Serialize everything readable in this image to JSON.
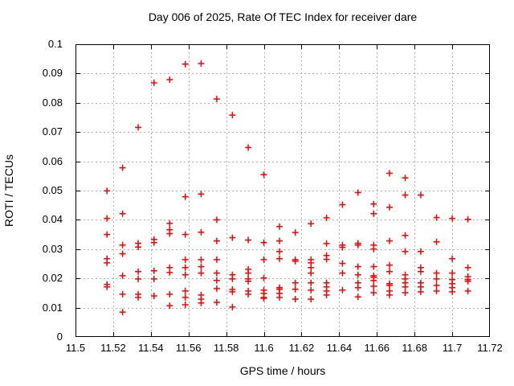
{
  "chart_data": {
    "type": "scatter",
    "title": "Day 006 of 2025, Rate Of TEC Index for receiver dare",
    "xlabel": "GPS time / hours",
    "ylabel": "ROTI / TECUs",
    "xlim": [
      11.5,
      11.72
    ],
    "ylim": [
      0,
      0.1
    ],
    "xtick_values": [
      11.5,
      11.52,
      11.54,
      11.56,
      11.58,
      11.6,
      11.62,
      11.64,
      11.66,
      11.68,
      11.7,
      11.72
    ],
    "xtick_labels": [
      "11.5",
      "11.52",
      "11.54",
      "11.56",
      "11.58",
      "11.6",
      "11.62",
      "11.64",
      "11.66",
      "11.68",
      "11.7",
      "11.72"
    ],
    "ytick_values": [
      0,
      0.01,
      0.02,
      0.03,
      0.04,
      0.05,
      0.06,
      0.07,
      0.08,
      0.09,
      0.1
    ],
    "ytick_labels": [
      "0",
      "0.01",
      "0.02",
      "0.03",
      "0.04",
      "0.05",
      "0.06",
      "0.07",
      "0.08",
      "0.09",
      "0.1"
    ],
    "grid": true,
    "legend": "none",
    "marker": "plus",
    "marker_color": "#ff0000",
    "grid_color": "#b0b0b0",
    "axis_color": "#000000",
    "series": [
      {
        "name": "ROTI",
        "clusters": [
          {
            "x": 11.5167,
            "y": [
              0.0499,
              0.0405,
              0.035,
              0.0267,
              0.0253,
              0.0179,
              0.0171
            ]
          },
          {
            "x": 11.525,
            "y": [
              0.0578,
              0.0421,
              0.0314,
              0.0284,
              0.0209,
              0.0146,
              0.0085
            ]
          },
          {
            "x": 11.5333,
            "y": [
              0.0716,
              0.032,
              0.0307,
              0.0223,
              0.0198,
              0.0146,
              0.0135
            ]
          },
          {
            "x": 11.5417,
            "y": [
              0.0868,
              0.0333,
              0.0322,
              0.0226,
              0.0198,
              0.014
            ]
          },
          {
            "x": 11.55,
            "y": [
              0.0879,
              0.0388,
              0.0366,
              0.0353,
              0.0237,
              0.022,
              0.0146,
              0.0107
            ]
          },
          {
            "x": 11.5583,
            "y": [
              0.0932,
              0.0479,
              0.035,
              0.0264,
              0.0237,
              0.0212,
              0.0157,
              0.0135,
              0.011
            ]
          },
          {
            "x": 11.5667,
            "y": [
              0.0934,
              0.0488,
              0.0358,
              0.0264,
              0.024,
              0.0218,
              0.0143,
              0.0129,
              0.0116
            ]
          },
          {
            "x": 11.575,
            "y": [
              0.0813,
              0.04,
              0.0328,
              0.0264,
              0.0218,
              0.0193,
              0.0165,
              0.0118
            ]
          },
          {
            "x": 11.5833,
            "y": [
              0.0758,
              0.0339,
              0.0212,
              0.0198,
              0.0162,
              0.0154,
              0.0102
            ]
          },
          {
            "x": 11.5917,
            "y": [
              0.0647,
              0.0331,
              0.0231,
              0.0218,
              0.0198,
              0.019,
              0.0157,
              0.0146
            ]
          },
          {
            "x": 11.6,
            "y": [
              0.0554,
              0.0322,
              0.0264,
              0.0201,
              0.016,
              0.0149,
              0.0135,
              0.0132
            ]
          },
          {
            "x": 11.6083,
            "y": [
              0.0377,
              0.0328,
              0.0292,
              0.0267,
              0.0168,
              0.0163,
              0.0149,
              0.0135
            ]
          },
          {
            "x": 11.6167,
            "y": [
              0.0357,
              0.0264,
              0.0259,
              0.0185,
              0.0163,
              0.0129
            ]
          },
          {
            "x": 11.625,
            "y": [
              0.0387,
              0.0264,
              0.0253,
              0.0237,
              0.0218,
              0.0185,
              0.016,
              0.0129
            ]
          },
          {
            "x": 11.6333,
            "y": [
              0.0407,
              0.0319,
              0.0278,
              0.0265,
              0.0185,
              0.0171,
              0.0157,
              0.0143
            ]
          },
          {
            "x": 11.6417,
            "y": [
              0.0452,
              0.0314,
              0.0306,
              0.0251,
              0.0218,
              0.016
            ]
          },
          {
            "x": 11.65,
            "y": [
              0.0493,
              0.032,
              0.0314,
              0.024,
              0.0212,
              0.0185,
              0.0168,
              0.0137
            ]
          },
          {
            "x": 11.6583,
            "y": [
              0.0454,
              0.0421,
              0.0314,
              0.03,
              0.024,
              0.0209,
              0.0204,
              0.0193,
              0.0173,
              0.0151
            ]
          },
          {
            "x": 11.6667,
            "y": [
              0.0559,
              0.0443,
              0.0328,
              0.0245,
              0.0223,
              0.0182,
              0.0176,
              0.0157,
              0.0143
            ]
          },
          {
            "x": 11.675,
            "y": [
              0.0543,
              0.0485,
              0.0347,
              0.0292,
              0.0212,
              0.0198,
              0.0185,
              0.0171,
              0.0151
            ]
          },
          {
            "x": 11.6833,
            "y": [
              0.0485,
              0.0292,
              0.0237,
              0.0223,
              0.0185,
              0.0171,
              0.0154
            ]
          },
          {
            "x": 11.6917,
            "y": [
              0.0408,
              0.0325,
              0.0218,
              0.0198,
              0.0176,
              0.0157
            ]
          },
          {
            "x": 11.7,
            "y": [
              0.0405,
              0.0267,
              0.0218,
              0.0196,
              0.0182,
              0.0168,
              0.0154
            ]
          },
          {
            "x": 11.7083,
            "y": [
              0.0402,
              0.0237,
              0.0206,
              0.0196,
              0.019,
              0.0157
            ]
          }
        ]
      }
    ]
  }
}
